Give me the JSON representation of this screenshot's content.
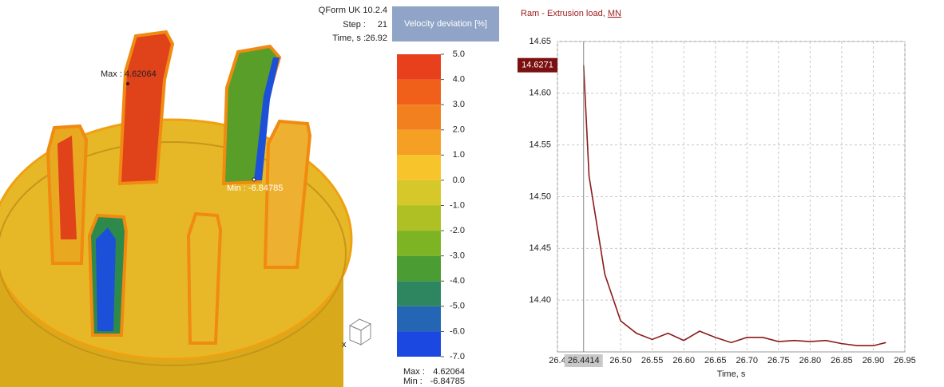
{
  "info": {
    "app": "QForm UK 10.2.4",
    "step_label": "Step :",
    "step": 21,
    "time_label": "Time, s :",
    "time": 26.92
  },
  "model": {
    "max_label": "Max :",
    "max": 4.62064,
    "min_label": "Min :",
    "min": -6.84785
  },
  "legend": {
    "title": "Velocity deviation  [%]",
    "ticks": [
      {
        "value": 5,
        "label": "5.0"
      },
      {
        "value": 4,
        "label": "4.0"
      },
      {
        "value": 3,
        "label": "3.0"
      },
      {
        "value": 2,
        "label": "2.0"
      },
      {
        "value": 1,
        "label": "1.0"
      },
      {
        "value": 0,
        "label": "0.0"
      },
      {
        "value": -1,
        "label": "-1.0"
      },
      {
        "value": -2,
        "label": "-2.0"
      },
      {
        "value": -3,
        "label": "-3.0"
      },
      {
        "value": -4,
        "label": "-4.0"
      },
      {
        "value": -5,
        "label": "-5.0"
      },
      {
        "value": -6,
        "label": "-6.0"
      },
      {
        "value": -7,
        "label": "-7.0"
      }
    ],
    "colors": [
      "#e8401c",
      "#f0601a",
      "#f2801e",
      "#f5a024",
      "#f8c42c",
      "#d6c82a",
      "#aec024",
      "#7cb424",
      "#4c9c34",
      "#2e8660",
      "#2466b4",
      "#1a48e0"
    ]
  },
  "chart_data": {
    "type": "line",
    "title": "Ram - Extrusion load,",
    "y_unit": "MN",
    "x_label": "Time, s",
    "x": [
      26.4414,
      26.45,
      26.475,
      26.5,
      26.525,
      26.55,
      26.575,
      26.6,
      26.625,
      26.65,
      26.675,
      26.7,
      26.725,
      26.75,
      26.775,
      26.8,
      26.825,
      26.85,
      26.875,
      26.9,
      26.92
    ],
    "values": [
      14.6271,
      14.52,
      14.425,
      14.38,
      14.368,
      14.362,
      14.368,
      14.361,
      14.37,
      14.364,
      14.359,
      14.364,
      14.364,
      14.36,
      14.361,
      14.36,
      14.361,
      14.358,
      14.356,
      14.356,
      14.359
    ],
    "color": "#8b1a1a",
    "xlim": [
      26.4,
      26.95
    ],
    "xticks": [
      26.4,
      {
        "value": 26.5,
        "label": "26.50"
      },
      26.55,
      {
        "value": 26.6,
        "label": "26.60"
      },
      26.65,
      {
        "value": 26.7,
        "label": "26.70"
      },
      26.75,
      {
        "value": 26.8,
        "label": "26.80"
      },
      26.85,
      {
        "value": 26.9,
        "label": "26.90"
      },
      26.95
    ],
    "ylim": [
      14.35,
      14.65
    ],
    "yticks": [
      {
        "value": 14.4,
        "label": "14.40"
      },
      14.45,
      {
        "value": 14.5,
        "label": "14.50"
      },
      14.55,
      {
        "value": 14.6,
        "label": "14.60"
      },
      14.65
    ],
    "grid": true,
    "cursor": {
      "x": 26.4414,
      "y": 14.6271
    }
  }
}
